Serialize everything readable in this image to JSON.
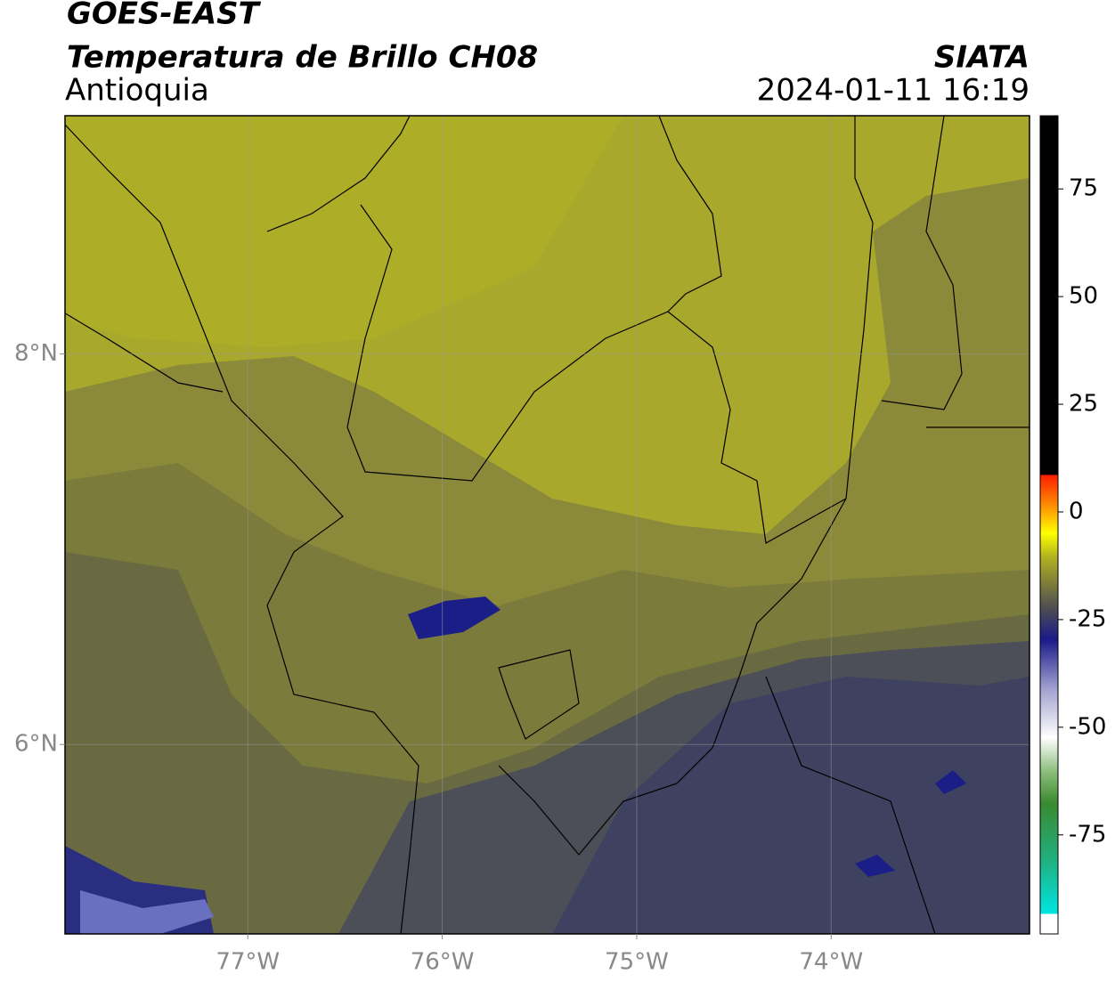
{
  "header": {
    "title": "GOES-EAST",
    "subtitle": "Temperatura de Brillo CH08",
    "source": "SIATA",
    "region": "Antioquia",
    "datetime": "2024-01-11 16:19"
  },
  "map": {
    "xlim": [
      -77.94,
      -72.98
    ],
    "ylim": [
      5.03,
      9.22
    ],
    "xticks": [
      {
        "value": -77,
        "label": "77°W"
      },
      {
        "value": -76,
        "label": "76°W"
      },
      {
        "value": -75,
        "label": "75°W"
      },
      {
        "value": -74,
        "label": "74°W"
      }
    ],
    "yticks": [
      {
        "value": 6,
        "label": "6°N"
      },
      {
        "value": 8,
        "label": "8°N"
      }
    ],
    "grid": true
  },
  "colorbar": {
    "lim": [
      -98,
      92
    ],
    "ticks": [
      75,
      50,
      25,
      0,
      -25,
      -50,
      -75
    ]
  }
}
